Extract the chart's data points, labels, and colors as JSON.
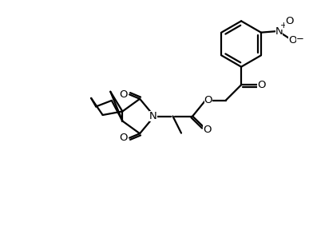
{
  "bg_color": "#ffffff",
  "line_color": "#000000",
  "bond_lw": 1.6,
  "font_size": 9.5,
  "dbo": 0.08,
  "fig_width": 3.87,
  "fig_height": 2.88,
  "dpi": 100,
  "xlim": [
    -1.5,
    10.5
  ],
  "ylim": [
    -1.0,
    8.5
  ]
}
